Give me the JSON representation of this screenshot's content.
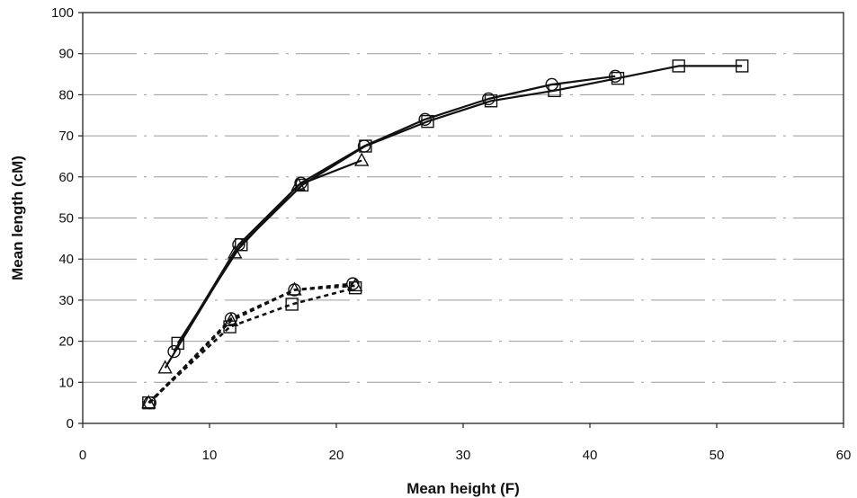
{
  "chart_data": {
    "type": "line",
    "title": "",
    "xlabel": "Mean height (F)",
    "ylabel": "Mean length (cM)",
    "xlim": [
      0,
      60
    ],
    "ylim": [
      0,
      100
    ],
    "xticks": [
      0,
      10,
      20,
      30,
      40,
      50,
      60
    ],
    "yticks": [
      0,
      10,
      20,
      30,
      40,
      50,
      60,
      70,
      80,
      90,
      100
    ],
    "grid": "horizontal",
    "legend": "none",
    "series": [
      {
        "line": "solid",
        "marker": "triangle",
        "color": "#111111",
        "x": [
          6.5,
          12,
          17,
          22
        ],
        "y": [
          13.5,
          41.5,
          58,
          64
        ]
      },
      {
        "line": "solid",
        "marker": "circle",
        "color": "#111111",
        "x": [
          7.2,
          12.3,
          17.2,
          22.2,
          27,
          32,
          37,
          42
        ],
        "y": [
          17.5,
          43.5,
          58.5,
          67.5,
          74,
          79,
          82.5,
          84.5
        ]
      },
      {
        "line": "solid",
        "marker": "square",
        "color": "#111111",
        "x": [
          7.5,
          12.5,
          17.3,
          22.3,
          27.2,
          32.2,
          37.2,
          42.2,
          47,
          52
        ],
        "y": [
          19.5,
          43.5,
          58,
          67.5,
          73.5,
          78.5,
          81,
          84,
          87,
          87
        ]
      },
      {
        "line": "dashed",
        "marker": "triangle",
        "color": "#111111",
        "x": [
          5.2,
          11.7,
          16.7,
          21.5
        ],
        "y": [
          5,
          25,
          32.5,
          33.5
        ]
      },
      {
        "line": "dashed",
        "marker": "circle",
        "color": "#111111",
        "x": [
          5.3,
          11.7,
          16.7,
          21.3
        ],
        "y": [
          5,
          25.5,
          32.5,
          34
        ]
      },
      {
        "line": "dashed",
        "marker": "square",
        "color": "#111111",
        "x": [
          5.2,
          11.6,
          16.5,
          21.5
        ],
        "y": [
          5,
          23.5,
          29,
          33
        ]
      }
    ]
  }
}
